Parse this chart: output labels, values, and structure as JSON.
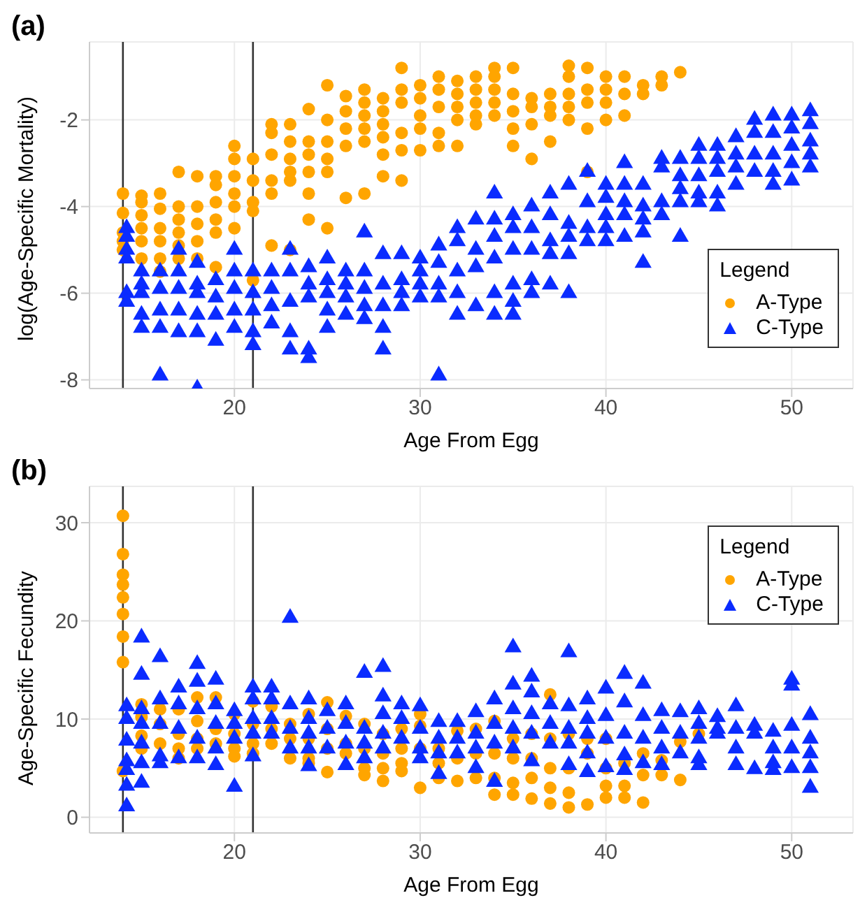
{
  "chart_data": [
    {
      "type": "scatter",
      "title": "(a)",
      "xlabel": "Age From Egg",
      "ylabel": "log(Age-Specific Mortality)",
      "legend_title": "Legend",
      "legend": "right",
      "grid": true,
      "xlim": [
        12.2,
        53.3
      ],
      "xticks": [
        20,
        30,
        40,
        50
      ],
      "ylim": [
        -8.2,
        -0.2
      ],
      "yticks": [
        -8,
        -6,
        -4,
        -2
      ],
      "ref_lines": [
        {
          "axis": "x",
          "value": 14,
          "color": "#333333"
        },
        {
          "axis": "x",
          "value": 21,
          "color": "#333333"
        }
      ],
      "series": [
        {
          "name": "A-Type",
          "color": "#ffa500",
          "marker": "circle",
          "x": [
            14,
            14,
            14,
            14,
            14,
            15,
            15,
            15,
            15,
            15,
            15,
            16,
            16,
            16,
            16,
            16,
            16,
            17,
            17,
            17,
            17,
            17,
            17,
            18,
            18,
            18,
            18,
            18,
            19,
            19,
            19,
            19,
            19,
            19,
            20,
            20,
            20,
            20,
            20,
            20,
            21,
            21,
            21,
            21,
            21,
            22,
            22,
            22,
            22,
            22,
            22,
            23,
            23,
            23,
            23,
            23,
            23,
            24,
            24,
            24,
            24,
            24,
            24,
            25,
            25,
            25,
            25,
            25,
            25,
            26,
            26,
            26,
            26,
            26,
            27,
            27,
            27,
            27,
            27,
            27,
            28,
            28,
            28,
            28,
            28,
            28,
            29,
            29,
            29,
            29,
            29,
            29,
            30,
            30,
            30,
            30,
            30,
            31,
            31,
            31,
            31,
            31,
            32,
            32,
            32,
            32,
            32,
            33,
            33,
            33,
            33,
            33,
            34,
            34,
            34,
            34,
            34,
            35,
            35,
            35,
            35,
            35,
            36,
            36,
            36,
            36,
            37,
            37,
            37,
            37,
            38,
            38,
            38,
            38,
            38,
            39,
            39,
            39,
            39,
            39,
            40,
            40,
            40,
            40,
            41,
            41,
            41,
            42,
            42,
            43,
            43,
            44
          ],
          "values": [
            -3.7,
            -4.15,
            -4.6,
            -4.8,
            -5.0,
            -3.75,
            -3.9,
            -4.2,
            -4.5,
            -4.8,
            -5.2,
            -3.7,
            -4.05,
            -4.5,
            -4.8,
            -5.2,
            -5.5,
            -3.2,
            -4.0,
            -4.3,
            -4.6,
            -4.9,
            -5.2,
            -3.3,
            -4.0,
            -4.4,
            -4.8,
            -5.2,
            -3.3,
            -3.5,
            -3.9,
            -4.3,
            -4.6,
            -5.4,
            -2.6,
            -2.9,
            -3.3,
            -3.7,
            -4.0,
            -4.5,
            -2.9,
            -3.4,
            -3.9,
            -4.1,
            -5.7,
            -2.1,
            -2.3,
            -2.8,
            -3.4,
            -3.7,
            -4.9,
            -2.1,
            -2.5,
            -2.9,
            -3.2,
            -3.4,
            -5.0,
            -1.75,
            -2.5,
            -2.8,
            -3.2,
            -3.7,
            -4.3,
            -1.2,
            -2.0,
            -2.5,
            -2.9,
            -3.2,
            -4.5,
            -1.45,
            -1.8,
            -2.2,
            -2.6,
            -3.8,
            -1.3,
            -1.6,
            -1.9,
            -2.2,
            -2.5,
            -3.7,
            -1.5,
            -1.8,
            -2.1,
            -2.4,
            -2.8,
            -3.3,
            -0.8,
            -1.3,
            -1.6,
            -2.3,
            -2.7,
            -3.4,
            -1.2,
            -1.5,
            -1.9,
            -2.2,
            -2.7,
            -1.0,
            -1.3,
            -1.7,
            -2.3,
            -2.6,
            -1.1,
            -1.4,
            -1.7,
            -2.0,
            -2.6,
            -1.0,
            -1.3,
            -1.6,
            -1.9,
            -2.1,
            -0.8,
            -1.0,
            -1.3,
            -1.6,
            -1.9,
            -0.8,
            -1.4,
            -1.8,
            -2.2,
            -2.6,
            -1.5,
            -1.7,
            -2.1,
            -2.9,
            -1.4,
            -1.7,
            -1.9,
            -2.5,
            -0.75,
            -1.0,
            -1.4,
            -1.7,
            -2.0,
            -0.8,
            -1.3,
            -1.6,
            -2.2,
            -3.2,
            -1.0,
            -1.3,
            -1.6,
            -2.0,
            -1.0,
            -1.4,
            -1.9,
            -1.2,
            -1.4,
            -1.0,
            -1.2,
            -0.9
          ]
        },
        {
          "name": "C-Type",
          "color": "#0a2bff",
          "marker": "triangle",
          "x": [
            14.2,
            14.2,
            14.2,
            14.2,
            14.2,
            14.2,
            15,
            15,
            15,
            15,
            15,
            16,
            16,
            16,
            16,
            16,
            17,
            17,
            17,
            17,
            17,
            18,
            18,
            18,
            18,
            18,
            18,
            19,
            19,
            19,
            19,
            20,
            20,
            20,
            20,
            20,
            21,
            21,
            21,
            21,
            21,
            22,
            22,
            22,
            22,
            23,
            23,
            23,
            23,
            23,
            24,
            24,
            24,
            24,
            24,
            25,
            25,
            25,
            25,
            25,
            26,
            26,
            26,
            26,
            27,
            27,
            27,
            27,
            27,
            28,
            28,
            28,
            28,
            28,
            29,
            29,
            29,
            29,
            30,
            30,
            30,
            30,
            31,
            31,
            31,
            31,
            31,
            32,
            32,
            32,
            32,
            32,
            33,
            33,
            33,
            33,
            34,
            34,
            34,
            34,
            34,
            34,
            35,
            35,
            35,
            35,
            35,
            35,
            36,
            36,
            36,
            36,
            36,
            37,
            37,
            37,
            37,
            37,
            38,
            38,
            38,
            38,
            38,
            39,
            39,
            39,
            39,
            40,
            40,
            40,
            40,
            40,
            41,
            41,
            41,
            41,
            41,
            42,
            42,
            42,
            42,
            42,
            43,
            43,
            43,
            43,
            44,
            44,
            44,
            44,
            44,
            45,
            45,
            45,
            45,
            45,
            46,
            46,
            46,
            46,
            46,
            47,
            47,
            47,
            47,
            48,
            48,
            48,
            48,
            49,
            49,
            49,
            49,
            49,
            50,
            50,
            50,
            50,
            50,
            51,
            51,
            51,
            51,
            51
          ],
          "values": [
            -4.5,
            -4.7,
            -5.0,
            -5.2,
            -6.0,
            -6.2,
            -5.5,
            -5.8,
            -6.0,
            -6.5,
            -6.8,
            -5.5,
            -5.9,
            -6.4,
            -6.8,
            -7.9,
            -5.0,
            -5.5,
            -5.9,
            -6.4,
            -6.9,
            -5.3,
            -5.8,
            -6.0,
            -6.5,
            -6.9,
            -8.2,
            -5.7,
            -6.1,
            -6.5,
            -7.1,
            -5.0,
            -5.5,
            -5.9,
            -6.4,
            -6.8,
            -5.5,
            -6.0,
            -6.4,
            -6.9,
            -7.2,
            -5.5,
            -5.9,
            -6.3,
            -6.7,
            -5.0,
            -5.5,
            -6.2,
            -6.9,
            -7.3,
            -5.4,
            -5.8,
            -6.1,
            -7.3,
            -7.5,
            -5.2,
            -5.7,
            -6.0,
            -6.4,
            -6.8,
            -5.5,
            -5.8,
            -6.1,
            -6.5,
            -4.6,
            -5.5,
            -5.9,
            -6.3,
            -6.6,
            -5.1,
            -5.8,
            -6.3,
            -6.8,
            -7.3,
            -5.1,
            -5.7,
            -6.0,
            -6.3,
            -5.2,
            -5.5,
            -5.8,
            -6.1,
            -4.9,
            -5.3,
            -5.8,
            -6.1,
            -7.9,
            -4.5,
            -4.8,
            -5.5,
            -6.0,
            -6.5,
            -4.3,
            -5.0,
            -5.4,
            -6.3,
            -3.7,
            -4.3,
            -4.7,
            -5.2,
            -6.0,
            -6.5,
            -4.2,
            -4.5,
            -5.0,
            -5.8,
            -6.2,
            -6.5,
            -4.0,
            -4.5,
            -5.0,
            -5.7,
            -6.0,
            -3.7,
            -4.2,
            -4.8,
            -5.1,
            -5.8,
            -3.5,
            -4.4,
            -4.7,
            -5.1,
            -6.0,
            -3.2,
            -3.9,
            -4.5,
            -4.8,
            -3.5,
            -3.8,
            -4.2,
            -4.5,
            -4.8,
            -3.0,
            -3.5,
            -3.9,
            -4.2,
            -4.7,
            -3.5,
            -4.0,
            -4.3,
            -4.6,
            -5.3,
            -2.9,
            -3.1,
            -3.9,
            -4.2,
            -2.9,
            -3.3,
            -3.6,
            -3.9,
            -4.7,
            -2.6,
            -2.9,
            -3.3,
            -3.7,
            -3.9,
            -2.6,
            -2.9,
            -3.2,
            -3.7,
            -4.0,
            -2.4,
            -2.8,
            -3.1,
            -3.5,
            -2.0,
            -2.3,
            -2.8,
            -3.2,
            -1.9,
            -2.3,
            -2.8,
            -3.2,
            -3.5,
            -1.9,
            -2.2,
            -2.6,
            -3.0,
            -3.4,
            -1.8,
            -2.1,
            -2.5,
            -2.8,
            -3.1
          ]
        }
      ]
    },
    {
      "type": "scatter",
      "title": "(b)",
      "xlabel": "Age From Egg",
      "ylabel": "Age-Specific Fecundity",
      "legend_title": "Legend",
      "legend": "top right",
      "grid": true,
      "xlim": [
        12.2,
        53.3
      ],
      "xticks": [
        20,
        30,
        40,
        50
      ],
      "ylim": [
        -1.6,
        33.7
      ],
      "yticks": [
        0,
        10,
        20,
        30
      ],
      "ref_lines": [
        {
          "axis": "x",
          "value": 14,
          "color": "#333333"
        },
        {
          "axis": "x",
          "value": 21,
          "color": "#333333"
        }
      ],
      "series": [
        {
          "name": "A-Type",
          "color": "#ffa500",
          "marker": "circle",
          "x": [
            14,
            14,
            14,
            14,
            14,
            14,
            14,
            14,
            14,
            15,
            15,
            15,
            15,
            16,
            16,
            16,
            17,
            17,
            17,
            17,
            18,
            18,
            18,
            18,
            19,
            19,
            19,
            20,
            20,
            20,
            20,
            21,
            21,
            21,
            21,
            22,
            22,
            22,
            23,
            23,
            23,
            24,
            24,
            24,
            24,
            25,
            25,
            25,
            25,
            26,
            26,
            26,
            27,
            27,
            27,
            27,
            28,
            28,
            28,
            28,
            29,
            29,
            29,
            29,
            30,
            30,
            30,
            30,
            31,
            31,
            31,
            32,
            32,
            32,
            33,
            33,
            33,
            34,
            34,
            34,
            34,
            35,
            35,
            35,
            35,
            36,
            36,
            36,
            36,
            37,
            37,
            37,
            37,
            37,
            38,
            38,
            38,
            38,
            39,
            39,
            39,
            40,
            40,
            40,
            40,
            41,
            41,
            41,
            42,
            42,
            42,
            43,
            43,
            44,
            44,
            45
          ],
          "values": [
            30.7,
            26.8,
            24.7,
            23.7,
            22.4,
            20.7,
            18.4,
            15.8,
            4.7,
            11.5,
            10.2,
            8.3,
            7.0,
            11.0,
            9.5,
            7.5,
            11.0,
            8.5,
            7.0,
            6.0,
            12.2,
            9.8,
            8.0,
            7.0,
            12.2,
            9.0,
            7.5,
            10.5,
            8.5,
            7.0,
            6.2,
            11.8,
            9.5,
            7.5,
            6.5,
            11.3,
            9.0,
            7.5,
            9.5,
            8.0,
            6.0,
            10.5,
            8.0,
            6.0,
            5.5,
            11.7,
            9.0,
            7.0,
            4.6,
            10.3,
            7.5,
            6.5,
            9.5,
            7.0,
            5.0,
            4.3,
            8.5,
            6.5,
            5.0,
            3.7,
            9.0,
            7.0,
            5.5,
            4.7,
            10.5,
            9.3,
            7.0,
            3.0,
            7.0,
            5.5,
            4.0,
            8.8,
            6.0,
            3.7,
            9.0,
            6.5,
            4.0,
            9.8,
            6.5,
            4.0,
            2.3,
            8.0,
            6.0,
            3.5,
            2.3,
            8.5,
            6.0,
            4.0,
            1.9,
            12.5,
            8.0,
            5.0,
            3.0,
            1.4,
            8.5,
            5.0,
            2.5,
            1.0,
            8.0,
            6.5,
            1.3,
            8.0,
            5.0,
            3.2,
            2.0,
            5.5,
            3.2,
            2.0,
            6.5,
            4.3,
            1.5,
            5.8,
            4.3,
            7.7,
            3.8,
            8.5
          ]
        },
        {
          "name": "C-Type",
          "color": "#0a2bff",
          "marker": "triangle",
          "x": [
            14.2,
            14.2,
            14.2,
            14.2,
            14.2,
            14.2,
            14.2,
            15,
            15,
            15,
            15,
            15,
            15,
            15,
            16,
            16,
            16,
            16,
            16,
            17,
            17,
            17,
            17,
            18,
            18,
            18,
            18,
            18,
            19,
            19,
            19,
            19,
            19,
            20,
            20,
            20,
            20,
            21,
            21,
            21,
            21,
            21,
            22,
            22,
            22,
            22,
            23,
            23,
            23,
            23,
            24,
            24,
            24,
            24,
            24,
            25,
            25,
            25,
            26,
            26,
            26,
            26,
            27,
            27,
            27,
            27,
            28,
            28,
            28,
            28,
            28,
            29,
            29,
            29,
            30,
            30,
            30,
            30,
            31,
            31,
            31,
            31,
            32,
            32,
            32,
            33,
            33,
            33,
            33,
            34,
            34,
            34,
            34,
            35,
            35,
            35,
            35,
            35,
            36,
            36,
            36,
            36,
            36,
            37,
            37,
            37,
            38,
            38,
            38,
            38,
            38,
            39,
            39,
            39,
            39,
            39,
            40,
            40,
            40,
            40,
            41,
            41,
            41,
            41,
            41,
            42,
            42,
            42,
            42,
            43,
            43,
            43,
            43,
            44,
            44,
            44,
            45,
            45,
            45,
            45,
            45,
            46,
            46,
            46,
            47,
            47,
            47,
            47,
            48,
            48,
            48,
            49,
            49,
            49,
            49,
            50,
            50,
            50,
            50,
            50,
            51,
            51,
            51,
            51,
            51
          ],
          "values": [
            11.3,
            10.0,
            7.8,
            5.7,
            4.8,
            3.2,
            1.1,
            18.3,
            14.5,
            11.0,
            9.5,
            7.5,
            5.5,
            3.5,
            16.3,
            12.0,
            9.5,
            6.2,
            5.5,
            13.2,
            11.5,
            9.0,
            6.0,
            15.6,
            13.8,
            11.0,
            8.0,
            6.0,
            14.0,
            11.5,
            9.5,
            7.0,
            5.3,
            10.8,
            9.5,
            8.0,
            3.1,
            13.2,
            12.0,
            10.0,
            8.5,
            6.2,
            13.2,
            12.0,
            10.0,
            8.5,
            20.3,
            11.5,
            9.0,
            7.0,
            12.0,
            10.0,
            8.5,
            7.0,
            5.2,
            10.8,
            9.0,
            7.0,
            11.5,
            9.5,
            7.5,
            5.3,
            14.7,
            9.0,
            7.5,
            6.0,
            15.3,
            12.3,
            10.5,
            8.5,
            7.0,
            11.5,
            10.0,
            8.0,
            11.3,
            9.0,
            7.0,
            6.0,
            9.7,
            8.0,
            6.5,
            4.4,
            9.7,
            8.0,
            6.5,
            10.7,
            8.5,
            7.0,
            5.0,
            12.0,
            9.5,
            7.5,
            3.6,
            17.3,
            13.5,
            11.0,
            9.0,
            7.0,
            14.3,
            12.7,
            10.5,
            8.5,
            5.7,
            11.5,
            9.5,
            7.5,
            16.8,
            11.3,
            9.0,
            7.5,
            5.3,
            12.0,
            10.0,
            8.5,
            6.5,
            4.6,
            13.1,
            10.3,
            8.0,
            5.1,
            14.6,
            11.7,
            8.5,
            6.3,
            4.8,
            13.6,
            10.3,
            8.0,
            5.5,
            10.8,
            9.0,
            7.0,
            5.3,
            10.7,
            8.5,
            6.5,
            11.0,
            9.5,
            8.0,
            6.0,
            5.3,
            10.2,
            9.0,
            8.5,
            11.3,
            9.0,
            7.0,
            5.3,
            9.3,
            8.5,
            4.9,
            8.7,
            7.0,
            5.5,
            4.8,
            14.0,
            13.4,
            9.3,
            7.0,
            5.0,
            10.4,
            8.0,
            6.5,
            5.0,
            3.0
          ]
        }
      ]
    }
  ]
}
